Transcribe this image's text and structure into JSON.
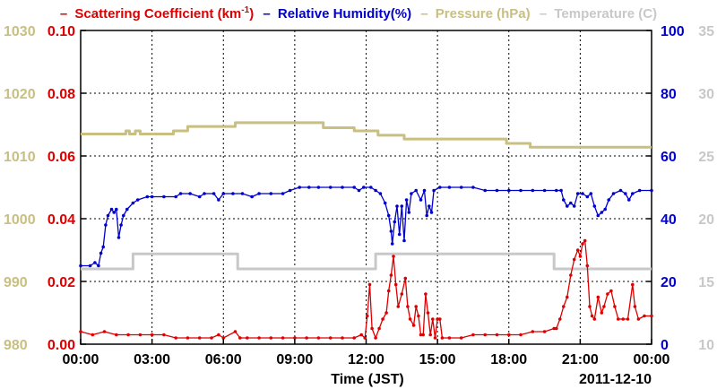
{
  "chart_data": {
    "type": "line",
    "xlabel": "Time (JST)",
    "date_label": "2011-12-10",
    "x_ticks": [
      "00:00",
      "03:00",
      "06:00",
      "09:00",
      "12:00",
      "15:00",
      "18:00",
      "21:00",
      "00:00"
    ],
    "xlim": [
      0,
      24
    ],
    "x_unit": "hours",
    "grid": true,
    "legend": {
      "placement": "top",
      "prefix": "–",
      "entries": [
        {
          "id": "scat",
          "label_main": "Scattering Coefficient (km",
          "label_sup": "-1",
          "label_end": ")",
          "color": "#dd0000"
        },
        {
          "id": "rh",
          "label": "Relative Humidity(%)",
          "color": "#0000cc"
        },
        {
          "id": "pres",
          "label": "Pressure (hPa)",
          "color": "#c8bf80"
        },
        {
          "id": "temp",
          "label": "Temperature (C)",
          "color": "#c8c8c8"
        }
      ]
    },
    "axes": {
      "pressure": {
        "side": "left-outer",
        "ylim": [
          980,
          1030
        ],
        "ticks": [
          "980",
          "990",
          "1000",
          "1010",
          "1020",
          "1030"
        ],
        "color": "#c8bf80"
      },
      "scattering": {
        "side": "left-inner",
        "ylim": [
          0,
          0.1
        ],
        "ticks": [
          "0.00",
          "0.02",
          "0.04",
          "0.06",
          "0.08",
          "0.10"
        ],
        "color": "#dd0000"
      },
      "humidity": {
        "side": "right-inner",
        "ylim": [
          0,
          100
        ],
        "ticks": [
          "0",
          "20",
          "40",
          "60",
          "80",
          "100"
        ],
        "color": "#0000cc"
      },
      "temperature": {
        "side": "right-outer",
        "ylim": [
          10,
          35
        ],
        "ticks": [
          "10",
          "15",
          "20",
          "25",
          "30",
          "35"
        ],
        "color": "#c8c8c8"
      }
    },
    "series": [
      {
        "name": "Pressure (hPa)",
        "axis": "pressure",
        "color": "#c8bf80",
        "markers": false,
        "points": [
          [
            0,
            1013.5
          ],
          [
            1.9,
            1013.5
          ],
          [
            1.9,
            1014
          ],
          [
            2.05,
            1014
          ],
          [
            2.05,
            1013.5
          ],
          [
            2.3,
            1013.5
          ],
          [
            2.3,
            1014
          ],
          [
            2.5,
            1014
          ],
          [
            2.5,
            1013.5
          ],
          [
            3.9,
            1013.5
          ],
          [
            3.9,
            1014
          ],
          [
            4.5,
            1014
          ],
          [
            4.5,
            1014.7
          ],
          [
            6.5,
            1014.7
          ],
          [
            6.5,
            1015.3
          ],
          [
            10.2,
            1015.3
          ],
          [
            10.2,
            1014.5
          ],
          [
            11.5,
            1014.5
          ],
          [
            11.5,
            1014
          ],
          [
            12.5,
            1014
          ],
          [
            12.5,
            1013.3
          ],
          [
            13.6,
            1013.3
          ],
          [
            13.6,
            1012.7
          ],
          [
            17.9,
            1012.7
          ],
          [
            17.9,
            1012
          ],
          [
            18.9,
            1012
          ],
          [
            18.9,
            1011.4
          ],
          [
            24,
            1011.4
          ]
        ]
      },
      {
        "name": "Temperature (C)",
        "axis": "temperature",
        "color": "#c8c8c8",
        "markers": false,
        "points": [
          [
            0,
            16
          ],
          [
            2.2,
            16
          ],
          [
            2.2,
            17.2
          ],
          [
            6.6,
            17.2
          ],
          [
            6.6,
            16
          ],
          [
            12.4,
            16
          ],
          [
            12.4,
            17.2
          ],
          [
            19.9,
            17.2
          ],
          [
            19.9,
            16
          ],
          [
            24,
            16
          ]
        ]
      },
      {
        "name": "Relative Humidity(%)",
        "axis": "rh",
        "color": "#0000cc",
        "markers": true,
        "points": [
          [
            0,
            25
          ],
          [
            0.4,
            25
          ],
          [
            0.6,
            26
          ],
          [
            0.75,
            25
          ],
          [
            0.85,
            29
          ],
          [
            0.95,
            31
          ],
          [
            1.05,
            38
          ],
          [
            1.15,
            41
          ],
          [
            1.3,
            43
          ],
          [
            1.4,
            42
          ],
          [
            1.5,
            43
          ],
          [
            1.6,
            34
          ],
          [
            1.7,
            38
          ],
          [
            1.8,
            41
          ],
          [
            1.95,
            43
          ],
          [
            2.2,
            45
          ],
          [
            2.4,
            46
          ],
          [
            2.8,
            47
          ],
          [
            3.0,
            47
          ],
          [
            3.5,
            47
          ],
          [
            4.0,
            47
          ],
          [
            4.2,
            48
          ],
          [
            4.6,
            48
          ],
          [
            5.0,
            47
          ],
          [
            5.2,
            48
          ],
          [
            5.6,
            48
          ],
          [
            5.8,
            46
          ],
          [
            6.0,
            48
          ],
          [
            6.4,
            48
          ],
          [
            6.8,
            48
          ],
          [
            7.2,
            47
          ],
          [
            7.5,
            48
          ],
          [
            8.0,
            48
          ],
          [
            8.5,
            48
          ],
          [
            8.8,
            49
          ],
          [
            9.2,
            50
          ],
          [
            9.6,
            50
          ],
          [
            10.0,
            50
          ],
          [
            10.5,
            50
          ],
          [
            11.0,
            50
          ],
          [
            11.5,
            50
          ],
          [
            11.7,
            49
          ],
          [
            11.9,
            50
          ],
          [
            12.2,
            50
          ],
          [
            12.4,
            49
          ],
          [
            12.6,
            48
          ],
          [
            12.8,
            45
          ],
          [
            12.95,
            41
          ],
          [
            13.05,
            36
          ],
          [
            13.1,
            32
          ],
          [
            13.2,
            39
          ],
          [
            13.3,
            44
          ],
          [
            13.4,
            35
          ],
          [
            13.5,
            44
          ],
          [
            13.6,
            33
          ],
          [
            13.7,
            46
          ],
          [
            13.8,
            42
          ],
          [
            13.9,
            48
          ],
          [
            14.1,
            49
          ],
          [
            14.3,
            46
          ],
          [
            14.45,
            49
          ],
          [
            14.55,
            41
          ],
          [
            14.65,
            44
          ],
          [
            14.75,
            42
          ],
          [
            14.85,
            49
          ],
          [
            15.1,
            50
          ],
          [
            15.5,
            50
          ],
          [
            16.0,
            50
          ],
          [
            16.5,
            50
          ],
          [
            17.0,
            49
          ],
          [
            17.5,
            49
          ],
          [
            18.0,
            49
          ],
          [
            18.5,
            49
          ],
          [
            19.0,
            49
          ],
          [
            19.5,
            49
          ],
          [
            20.0,
            49
          ],
          [
            20.2,
            49
          ],
          [
            20.3,
            46
          ],
          [
            20.45,
            44
          ],
          [
            20.6,
            45
          ],
          [
            20.75,
            44
          ],
          [
            20.9,
            48
          ],
          [
            21.1,
            48
          ],
          [
            21.3,
            47
          ],
          [
            21.45,
            48
          ],
          [
            21.6,
            44
          ],
          [
            21.75,
            41
          ],
          [
            21.9,
            42
          ],
          [
            22.05,
            43
          ],
          [
            22.2,
            46
          ],
          [
            22.4,
            48
          ],
          [
            22.7,
            49
          ],
          [
            22.9,
            48
          ],
          [
            23.05,
            46
          ],
          [
            23.2,
            48
          ],
          [
            23.5,
            49
          ],
          [
            24,
            49
          ]
        ]
      },
      {
        "name": "Scattering Coefficient",
        "axis": "scattering",
        "color": "#dd0000",
        "markers": true,
        "points": [
          [
            0,
            0.004
          ],
          [
            0.5,
            0.003
          ],
          [
            1.0,
            0.004
          ],
          [
            1.5,
            0.003
          ],
          [
            2.0,
            0.003
          ],
          [
            2.5,
            0.003
          ],
          [
            3.0,
            0.003
          ],
          [
            3.5,
            0.003
          ],
          [
            4.0,
            0.002
          ],
          [
            4.5,
            0.002
          ],
          [
            5.0,
            0.002
          ],
          [
            5.5,
            0.002
          ],
          [
            5.8,
            0.003
          ],
          [
            6.0,
            0.002
          ],
          [
            6.5,
            0.004
          ],
          [
            6.7,
            0.002
          ],
          [
            7.0,
            0.002
          ],
          [
            7.5,
            0.002
          ],
          [
            8.0,
            0.002
          ],
          [
            8.5,
            0.002
          ],
          [
            9.0,
            0.002
          ],
          [
            9.5,
            0.002
          ],
          [
            10.0,
            0.002
          ],
          [
            10.5,
            0.002
          ],
          [
            11.0,
            0.002
          ],
          [
            11.5,
            0.002
          ],
          [
            11.8,
            0.003
          ],
          [
            11.95,
            0.002
          ],
          [
            12.05,
            0.009
          ],
          [
            12.15,
            0.019
          ],
          [
            12.25,
            0.005
          ],
          [
            12.4,
            0.002
          ],
          [
            12.55,
            0.005
          ],
          [
            12.7,
            0.008
          ],
          [
            12.85,
            0.01
          ],
          [
            12.95,
            0.017
          ],
          [
            13.05,
            0.022
          ],
          [
            13.15,
            0.028
          ],
          [
            13.25,
            0.019
          ],
          [
            13.35,
            0.012
          ],
          [
            13.5,
            0.016
          ],
          [
            13.65,
            0.021
          ],
          [
            13.75,
            0.012
          ],
          [
            13.85,
            0.008
          ],
          [
            14.0,
            0.006
          ],
          [
            14.1,
            0.012
          ],
          [
            14.2,
            0.009
          ],
          [
            14.3,
            0.003
          ],
          [
            14.4,
            0.003
          ],
          [
            14.5,
            0.016
          ],
          [
            14.6,
            0.01
          ],
          [
            14.7,
            0.003
          ],
          [
            14.8,
            0.008
          ],
          [
            14.9,
            0.002
          ],
          [
            15.0,
            0.008
          ],
          [
            15.1,
            0.008
          ],
          [
            15.2,
            0.002
          ],
          [
            15.5,
            0.002
          ],
          [
            16.0,
            0.002
          ],
          [
            16.5,
            0.003
          ],
          [
            17.0,
            0.003
          ],
          [
            17.5,
            0.003
          ],
          [
            18.0,
            0.003
          ],
          [
            18.5,
            0.003
          ],
          [
            19.0,
            0.004
          ],
          [
            19.5,
            0.004
          ],
          [
            19.9,
            0.005
          ],
          [
            20.0,
            0.005
          ],
          [
            20.15,
            0.008
          ],
          [
            20.3,
            0.012
          ],
          [
            20.45,
            0.015
          ],
          [
            20.6,
            0.022
          ],
          [
            20.75,
            0.027
          ],
          [
            20.9,
            0.03
          ],
          [
            21.0,
            0.028
          ],
          [
            21.1,
            0.032
          ],
          [
            21.2,
            0.033
          ],
          [
            21.3,
            0.025
          ],
          [
            21.4,
            0.012
          ],
          [
            21.5,
            0.009
          ],
          [
            21.6,
            0.008
          ],
          [
            21.75,
            0.015
          ],
          [
            21.9,
            0.01
          ],
          [
            22.0,
            0.012
          ],
          [
            22.15,
            0.016
          ],
          [
            22.3,
            0.017
          ],
          [
            22.45,
            0.012
          ],
          [
            22.6,
            0.008
          ],
          [
            22.8,
            0.008
          ],
          [
            23.0,
            0.008
          ],
          [
            23.2,
            0.019
          ],
          [
            23.3,
            0.012
          ],
          [
            23.45,
            0.008
          ],
          [
            23.7,
            0.009
          ],
          [
            24,
            0.009
          ]
        ]
      }
    ]
  }
}
